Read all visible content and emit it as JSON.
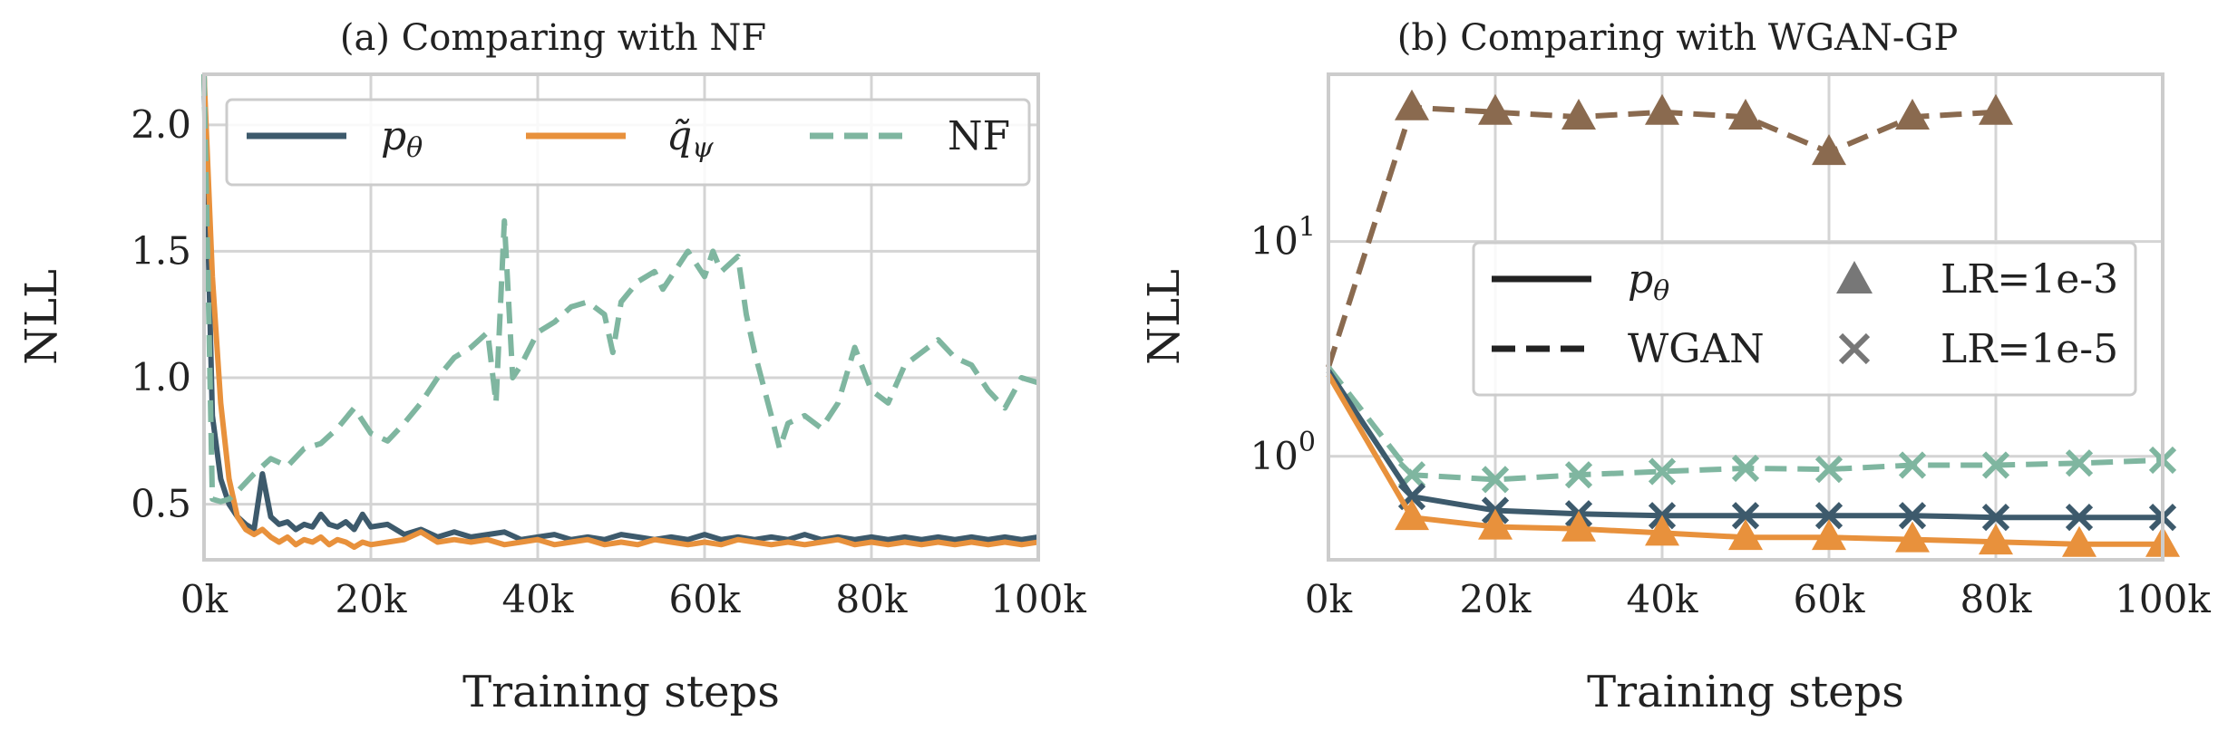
{
  "colors": {
    "p_theta": "#3d5a6c",
    "q_psi": "#e8913c",
    "nf": "#7fb6a0",
    "wgan": "#8a6a4f",
    "legend_gray": "#777777"
  },
  "chart_data": [
    {
      "type": "line",
      "title": "(a) Comparing with NF",
      "xlabel": "Training steps",
      "ylabel": "NLL",
      "xlim": [
        0,
        100000
      ],
      "ylim": [
        0.28,
        2.2
      ],
      "xticks": [
        0,
        20000,
        40000,
        60000,
        80000,
        100000
      ],
      "xtick_labels": [
        "0k",
        "20k",
        "40k",
        "60k",
        "80k",
        "100k"
      ],
      "yticks": [
        0.5,
        1.0,
        1.5,
        2.0
      ],
      "ytick_labels": [
        "0.5",
        "1.0",
        "1.5",
        "2.0"
      ],
      "legend": {
        "position": "top",
        "entries": [
          {
            "label": "pθ",
            "color_key": "p_theta",
            "dash": "solid"
          },
          {
            "label": "q̃ψ",
            "color_key": "q_psi",
            "dash": "solid"
          },
          {
            "label": "NF",
            "color_key": "nf",
            "dash": "dashed"
          }
        ]
      },
      "series": [
        {
          "name": "pθ",
          "color_key": "p_theta",
          "dash": "solid",
          "x": [
            0,
            1000,
            2000,
            3000,
            4000,
            5000,
            6000,
            7000,
            8000,
            9000,
            10000,
            11000,
            12000,
            13000,
            14000,
            15000,
            16000,
            17000,
            18000,
            19000,
            20000,
            22000,
            24000,
            26000,
            28000,
            30000,
            32000,
            34000,
            36000,
            38000,
            40000,
            42000,
            44000,
            46000,
            48000,
            50000,
            52000,
            54000,
            56000,
            58000,
            60000,
            62000,
            64000,
            66000,
            68000,
            70000,
            72000,
            74000,
            76000,
            78000,
            80000,
            82000,
            84000,
            86000,
            88000,
            90000,
            92000,
            94000,
            96000,
            98000,
            100000
          ],
          "y": [
            2.2,
            0.85,
            0.6,
            0.5,
            0.45,
            0.42,
            0.4,
            0.62,
            0.45,
            0.42,
            0.43,
            0.4,
            0.42,
            0.41,
            0.46,
            0.42,
            0.41,
            0.43,
            0.4,
            0.46,
            0.41,
            0.42,
            0.38,
            0.4,
            0.37,
            0.39,
            0.37,
            0.38,
            0.39,
            0.36,
            0.37,
            0.38,
            0.36,
            0.37,
            0.36,
            0.38,
            0.37,
            0.36,
            0.37,
            0.36,
            0.38,
            0.36,
            0.37,
            0.36,
            0.37,
            0.36,
            0.38,
            0.36,
            0.37,
            0.36,
            0.37,
            0.36,
            0.37,
            0.36,
            0.37,
            0.36,
            0.37,
            0.36,
            0.37,
            0.36,
            0.37
          ]
        },
        {
          "name": "q̃ψ",
          "color_key": "q_psi",
          "dash": "solid",
          "x": [
            0,
            1000,
            2000,
            3000,
            4000,
            5000,
            6000,
            7000,
            8000,
            9000,
            10000,
            11000,
            12000,
            13000,
            14000,
            15000,
            16000,
            17000,
            18000,
            19000,
            20000,
            22000,
            24000,
            26000,
            28000,
            30000,
            32000,
            34000,
            36000,
            38000,
            40000,
            42000,
            44000,
            46000,
            48000,
            50000,
            52000,
            54000,
            56000,
            58000,
            60000,
            62000,
            64000,
            66000,
            68000,
            70000,
            72000,
            74000,
            76000,
            78000,
            80000,
            82000,
            84000,
            86000,
            88000,
            90000,
            92000,
            94000,
            96000,
            98000,
            100000
          ],
          "y": [
            2.2,
            1.4,
            0.9,
            0.6,
            0.45,
            0.4,
            0.38,
            0.4,
            0.37,
            0.35,
            0.37,
            0.34,
            0.36,
            0.35,
            0.37,
            0.34,
            0.36,
            0.35,
            0.33,
            0.35,
            0.34,
            0.35,
            0.36,
            0.39,
            0.35,
            0.36,
            0.35,
            0.36,
            0.34,
            0.35,
            0.36,
            0.34,
            0.35,
            0.36,
            0.34,
            0.35,
            0.34,
            0.36,
            0.35,
            0.34,
            0.35,
            0.34,
            0.36,
            0.35,
            0.34,
            0.35,
            0.34,
            0.35,
            0.36,
            0.34,
            0.35,
            0.34,
            0.35,
            0.34,
            0.35,
            0.34,
            0.35,
            0.34,
            0.35,
            0.34,
            0.35
          ]
        },
        {
          "name": "NF",
          "color_key": "nf",
          "dash": "dashed",
          "x": [
            0,
            1000,
            2000,
            3000,
            4000,
            6000,
            8000,
            10000,
            12000,
            14000,
            16000,
            18000,
            20000,
            22000,
            24000,
            26000,
            28000,
            30000,
            32000,
            34000,
            35000,
            36000,
            37000,
            38000,
            40000,
            42000,
            44000,
            46000,
            48000,
            49000,
            50000,
            52000,
            54000,
            55000,
            56000,
            58000,
            60000,
            61000,
            62000,
            64000,
            65000,
            66000,
            68000,
            69000,
            70000,
            72000,
            74000,
            76000,
            78000,
            80000,
            82000,
            84000,
            86000,
            88000,
            90000,
            92000,
            94000,
            96000,
            98000,
            100000
          ],
          "y": [
            2.2,
            0.52,
            0.51,
            0.52,
            0.55,
            0.62,
            0.68,
            0.65,
            0.72,
            0.74,
            0.8,
            0.88,
            0.78,
            0.75,
            0.82,
            0.9,
            1.0,
            1.08,
            1.12,
            1.18,
            0.9,
            1.62,
            1.0,
            1.05,
            1.18,
            1.22,
            1.28,
            1.3,
            1.25,
            1.1,
            1.3,
            1.38,
            1.42,
            1.35,
            1.4,
            1.5,
            1.4,
            1.5,
            1.42,
            1.48,
            1.25,
            1.1,
            0.85,
            0.72,
            0.82,
            0.85,
            0.8,
            0.9,
            1.12,
            0.95,
            0.9,
            1.05,
            1.1,
            1.15,
            1.08,
            1.05,
            0.95,
            0.88,
            1.0,
            0.98
          ]
        }
      ]
    },
    {
      "type": "line",
      "title": "(b) Comparing with WGAN-GP",
      "xlabel": "Training steps",
      "ylabel": "NLL",
      "yscale": "log",
      "xlim": [
        0,
        100000
      ],
      "ylim": [
        0.33,
        60
      ],
      "xticks": [
        0,
        20000,
        40000,
        60000,
        80000,
        100000
      ],
      "xtick_labels": [
        "0k",
        "20k",
        "40k",
        "60k",
        "80k",
        "100k"
      ],
      "yticks": [
        1,
        10
      ],
      "ytick_labels": [
        {
          "base": "10",
          "exp": "0"
        },
        {
          "base": "10",
          "exp": "1"
        }
      ],
      "legend": {
        "position": "center-right",
        "entries": [
          {
            "label": "pθ",
            "kind": "line",
            "dash": "solid"
          },
          {
            "label": "LR=1e-3",
            "kind": "marker",
            "marker": "triangle"
          },
          {
            "label": "WGAN",
            "kind": "line",
            "dash": "dashed"
          },
          {
            "label": "LR=1e-5",
            "kind": "marker",
            "marker": "x"
          }
        ]
      },
      "series": [
        {
          "name": "WGAN LR=1e-3",
          "color_key": "wgan",
          "dash": "dashed",
          "marker": "triangle",
          "x": [
            0,
            10000,
            20000,
            30000,
            40000,
            50000,
            60000,
            70000,
            80000
          ],
          "y": [
            2.6,
            42,
            40,
            38,
            40,
            38,
            26,
            38,
            40
          ]
        },
        {
          "name": "NF LR=1e-5",
          "color_key": "nf",
          "dash": "dashed",
          "marker": "x",
          "x": [
            0,
            10000,
            20000,
            30000,
            40000,
            50000,
            60000,
            70000,
            80000,
            90000,
            100000
          ],
          "y": [
            2.6,
            0.82,
            0.78,
            0.82,
            0.85,
            0.88,
            0.87,
            0.91,
            0.91,
            0.93,
            0.96
          ]
        },
        {
          "name": "pθ LR=1e-5",
          "color_key": "p_theta",
          "dash": "solid",
          "marker": "x",
          "x": [
            0,
            10000,
            20000,
            30000,
            40000,
            50000,
            60000,
            70000,
            80000,
            90000,
            100000
          ],
          "y": [
            2.5,
            0.65,
            0.56,
            0.54,
            0.53,
            0.53,
            0.53,
            0.53,
            0.52,
            0.52,
            0.52
          ]
        },
        {
          "name": "q̃ψ LR=1e-3",
          "color_key": "q_psi",
          "dash": "solid",
          "marker": "triangle",
          "x": [
            0,
            10000,
            20000,
            30000,
            40000,
            50000,
            60000,
            70000,
            80000,
            90000,
            100000
          ],
          "y": [
            2.4,
            0.52,
            0.47,
            0.46,
            0.44,
            0.42,
            0.42,
            0.41,
            0.4,
            0.39,
            0.39
          ]
        }
      ]
    }
  ]
}
